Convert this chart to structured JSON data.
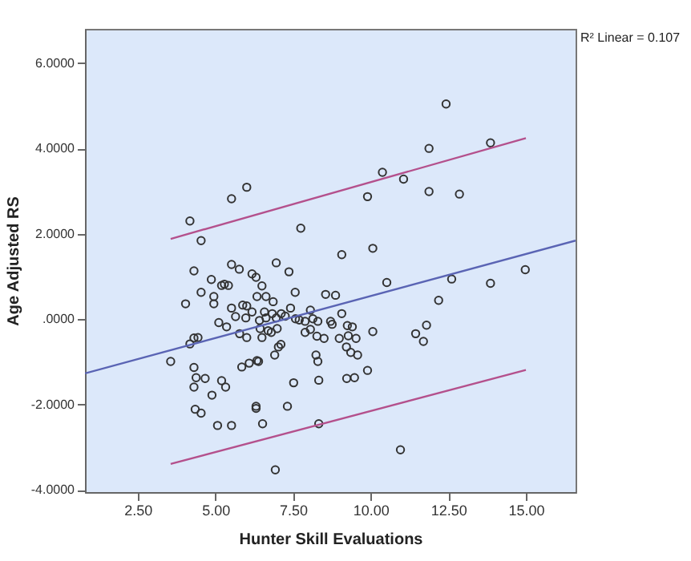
{
  "chart_data": {
    "type": "scatter",
    "xlabel": "Hunter Skill Evaluations",
    "ylabel": "Age Adjusted RS",
    "annotations": [
      "R² Linear = 0.107"
    ],
    "xlim": [
      0.8,
      16.6
    ],
    "ylim": [
      -4.05,
      6.8
    ],
    "xticks": [
      {
        "value": 2.5,
        "label": "2.50"
      },
      {
        "value": 5,
        "label": "5.00"
      },
      {
        "value": 7.5,
        "label": "7.50"
      },
      {
        "value": 10,
        "label": "10.00"
      },
      {
        "value": 12.5,
        "label": "12.50"
      },
      {
        "value": 15,
        "label": "15.00"
      }
    ],
    "yticks": [
      {
        "value": -4,
        "label": "-4.0000"
      },
      {
        "value": -2,
        "label": "-2.0000"
      },
      {
        "value": 0,
        "label": ".0000"
      },
      {
        "value": 2,
        "label": "2.0000"
      },
      {
        "value": 4,
        "label": "4.0000"
      },
      {
        "value": 6,
        "label": "6.0000"
      }
    ],
    "grid": false,
    "marker": "circle",
    "series": [
      {
        "color": "#333333",
        "x": [
          4.54,
          9.07,
          10.07,
          6.96,
          5.52,
          5.77,
          7.37,
          6.18,
          6.31,
          4.31,
          4.87,
          5.29,
          5.42,
          5.2,
          10.52,
          6.5,
          4.54,
          7.57,
          4.95,
          6.34,
          6.63,
          8.55,
          8.87,
          4.95,
          4.04,
          5.88,
          6.86,
          6.01,
          5.52,
          6.18,
          7.42,
          6.58,
          6.83,
          7.12,
          8.06,
          9.07,
          5.11,
          5.36,
          5.65,
          5.98,
          6.42,
          6.63,
          6.96,
          7.25,
          7.58,
          7.7,
          7.89,
          8.14,
          8.3,
          8.71,
          8.76,
          9.25,
          9.41,
          10.07,
          6.44,
          6.7,
          6.99,
          5.78,
          6.01,
          6.5,
          6.8,
          7.89,
          8.06,
          8.27,
          8.5,
          8.99,
          9.28,
          9.53,
          4.31,
          4.44,
          4.18,
          7.11,
          7.03,
          9.22,
          9.36,
          9.58,
          6.91,
          6.34,
          6.39,
          6.09,
          5.85,
          3.56,
          4.31,
          8.24,
          8.3,
          9.9,
          4.38,
          4.67,
          4.31,
          5.2,
          5.33,
          7.52,
          8.33,
          9.23,
          9.48,
          4.89,
          4.35,
          4.54,
          6.31,
          6.31,
          7.32,
          5.07,
          5.52,
          6.52,
          8.33,
          6.93,
          10.96,
          4.18,
          5.52,
          6.01,
          7.75,
          10.38,
          11.06,
          11.88,
          12.43,
          13.86,
          11.88,
          12.86,
          12.61,
          13.86,
          14.98,
          12.19,
          11.8,
          11.45,
          11.7,
          9.9
        ],
        "values": [
          1.84,
          1.51,
          1.66,
          1.32,
          1.28,
          1.17,
          1.11,
          1.06,
          0.98,
          1.13,
          0.93,
          0.82,
          0.79,
          0.79,
          0.86,
          0.78,
          0.63,
          0.63,
          0.53,
          0.53,
          0.53,
          0.58,
          0.56,
          0.36,
          0.36,
          0.33,
          0.41,
          0.31,
          0.26,
          0.17,
          0.26,
          0.17,
          0.13,
          0.13,
          0.21,
          0.13,
          -0.08,
          -0.18,
          0.06,
          0.03,
          -0.03,
          0.03,
          0.03,
          0.07,
          0.01,
          -0.02,
          -0.05,
          0.01,
          -0.05,
          -0.05,
          -0.12,
          -0.15,
          -0.18,
          -0.29,
          -0.22,
          -0.27,
          -0.22,
          -0.34,
          -0.43,
          -0.43,
          -0.31,
          -0.31,
          -0.24,
          -0.4,
          -0.45,
          -0.45,
          -0.39,
          -0.45,
          -0.44,
          -0.43,
          -0.58,
          -0.59,
          -0.65,
          -0.65,
          -0.78,
          -0.84,
          -0.84,
          -0.97,
          -0.99,
          -1.03,
          -1.12,
          -0.99,
          -1.13,
          -0.84,
          -0.99,
          -1.2,
          -1.37,
          -1.39,
          -1.59,
          -1.44,
          -1.59,
          -1.49,
          -1.43,
          -1.39,
          -1.37,
          -1.78,
          -2.11,
          -2.2,
          -2.04,
          -2.09,
          -2.04,
          -2.49,
          -2.49,
          -2.45,
          -2.45,
          -3.53,
          -3.06,
          2.3,
          2.82,
          3.09,
          2.13,
          3.44,
          3.28,
          4.0,
          5.04,
          4.13,
          2.99,
          2.93,
          0.94,
          0.84,
          1.16,
          0.44,
          -0.14,
          -0.34,
          -0.52,
          2.87
        ]
      },
      {
        "type": "line",
        "color": "#5a64b4",
        "line_style": "solid",
        "marker": "none",
        "x": [
          0.8,
          16.6
        ],
        "values": [
          -1.27,
          1.84
        ]
      },
      {
        "type": "line",
        "color": "#b4508c",
        "line_style": "solid",
        "marker": "none",
        "x": [
          3.56,
          15.0
        ],
        "values": [
          1.88,
          4.24
        ]
      },
      {
        "type": "line",
        "color": "#b4508c",
        "line_style": "solid",
        "marker": "none",
        "x": [
          3.56,
          15.0
        ],
        "values": [
          -3.39,
          -1.19
        ]
      }
    ]
  }
}
